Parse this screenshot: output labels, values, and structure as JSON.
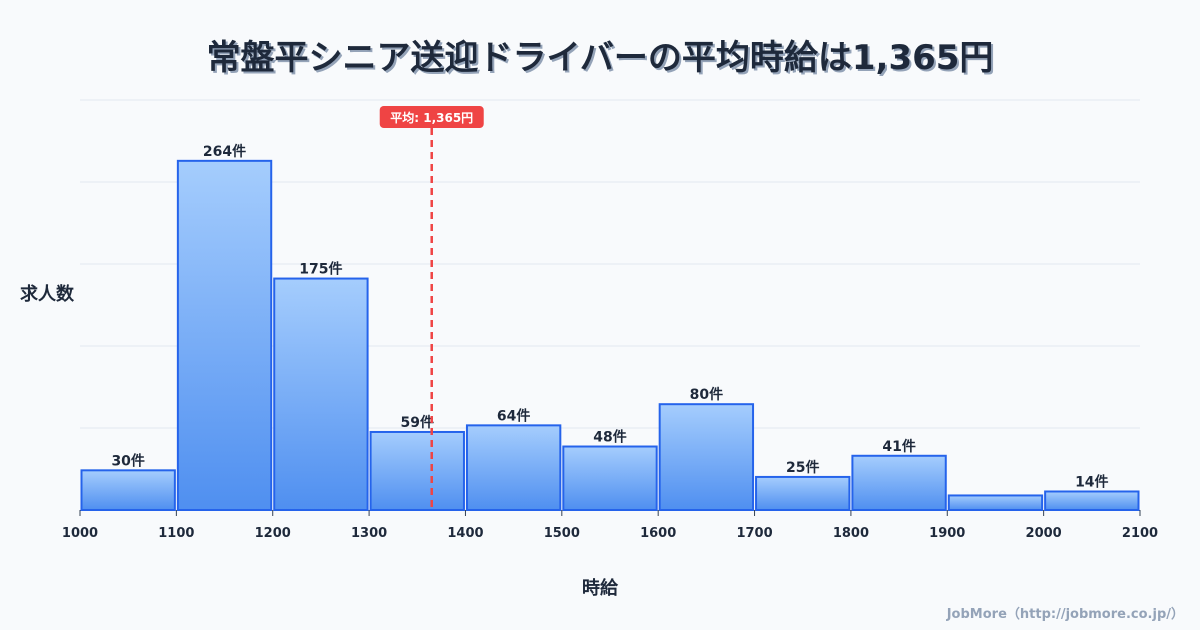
{
  "chart_data": {
    "type": "bar",
    "title": "常盤平シニア送迎ドライバーの平均時給は1,365円",
    "xlabel": "時給",
    "ylabel": "求人数",
    "bins": [
      [
        1000,
        1100
      ],
      [
        1100,
        1200
      ],
      [
        1200,
        1300
      ],
      [
        1300,
        1400
      ],
      [
        1400,
        1500
      ],
      [
        1500,
        1600
      ],
      [
        1600,
        1700
      ],
      [
        1700,
        1800
      ],
      [
        1800,
        1900
      ],
      [
        1900,
        2000
      ],
      [
        2000,
        2100
      ]
    ],
    "values": [
      30,
      264,
      175,
      59,
      64,
      48,
      80,
      25,
      41,
      11,
      14
    ],
    "labels": [
      "30件",
      "264件",
      "175件",
      "59件",
      "64件",
      "48件",
      "80件",
      "25件",
      "41件",
      null,
      "14件"
    ],
    "x_ticks": [
      "1000",
      "1100",
      "1200",
      "1300",
      "1400",
      "1500",
      "1600",
      "1700",
      "1800",
      "1900",
      "2000",
      "2100"
    ],
    "xlim": [
      1000,
      2100
    ],
    "ylim": [
      0,
      310
    ],
    "grid": true,
    "mean": {
      "value": 1365,
      "label": "平均: 1,365円"
    },
    "colors": {
      "bar_top": "#a5cdfd",
      "bar_bottom": "#4f8ff0",
      "bar_stroke": "#2563eb",
      "mean": "#ef4444",
      "text": "#1e293b",
      "grid": "#e2e8f0"
    }
  },
  "credit": "JobMore（http://jobmore.co.jp/）"
}
